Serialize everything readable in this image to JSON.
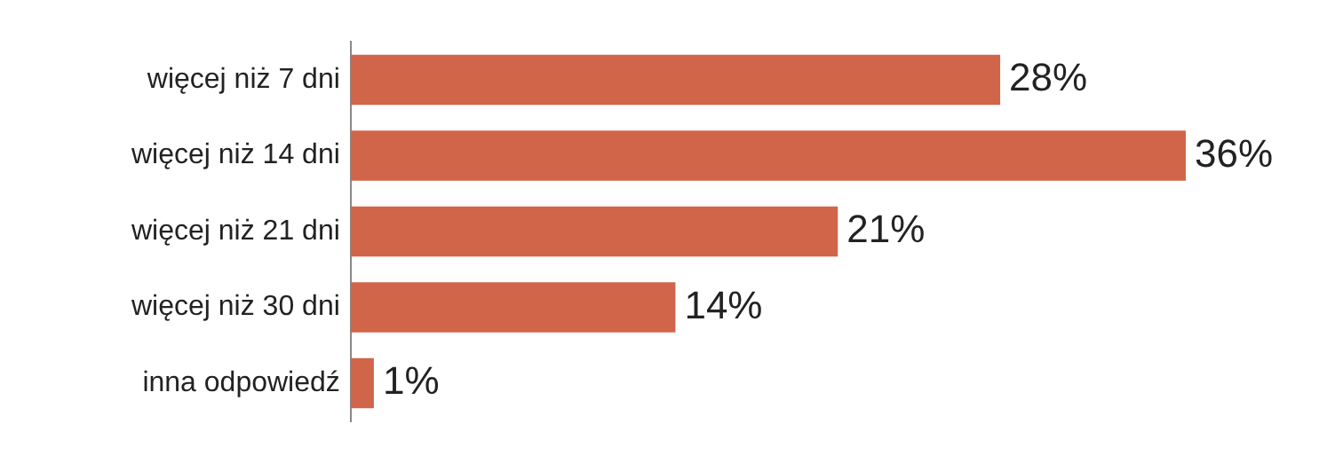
{
  "chart_data": {
    "type": "bar",
    "orientation": "horizontal",
    "categories": [
      "więcej niż 7 dni",
      "więcej niż 14 dni",
      "więcej niż 21 dni",
      "więcej niż 30 dni",
      "inna odpowiedź"
    ],
    "values": [
      28,
      36,
      21,
      14,
      1
    ],
    "color": "#d0654a",
    "data_labels": true,
    "value_labels": [
      "28%",
      "36%",
      "21%",
      "14%",
      "1%"
    ],
    "grid": false,
    "legend": false
  }
}
